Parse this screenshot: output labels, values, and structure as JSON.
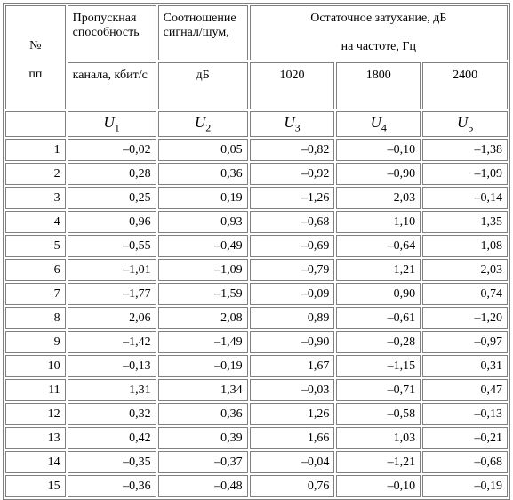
{
  "header": {
    "number_top": "№",
    "number_bottom": "пп",
    "columns": [
      {
        "top": "Пропускная способность",
        "unit": "канала, кбит/с",
        "symbol": "U",
        "index": "1"
      },
      {
        "top": "Соотношение сигнал/шум,",
        "unit": "дБ",
        "symbol": "U",
        "index": "2"
      },
      {
        "top": null,
        "unit": "1020",
        "symbol": "U",
        "index": "3"
      },
      {
        "top": null,
        "unit": "1800",
        "symbol": "U",
        "index": "4"
      },
      {
        "top": null,
        "unit": "2400",
        "symbol": "U",
        "index": "5"
      }
    ],
    "group_title": "Остаточное затухание, дБ",
    "group_subtitle": "на частоте, Гц"
  },
  "table": {
    "rows": [
      [
        "1",
        "–0,02",
        "0,05",
        "–0,82",
        "–0,10",
        "–1,38"
      ],
      [
        "2",
        "0,28",
        "0,36",
        "–0,92",
        "–0,90",
        "–1,09"
      ],
      [
        "3",
        "0,25",
        "0,19",
        "–1,26",
        "2,03",
        "–0,14"
      ],
      [
        "4",
        "0,96",
        "0,93",
        "–0,68",
        "1,10",
        "1,35"
      ],
      [
        "5",
        "–0,55",
        "–0,49",
        "–0,69",
        "–0,64",
        "1,08"
      ],
      [
        "6",
        "–1,01",
        "–1,09",
        "–0,79",
        "1,21",
        "2,03"
      ],
      [
        "7",
        "–1,77",
        "–1,59",
        "–0,09",
        "0,90",
        "0,74"
      ],
      [
        "8",
        "2,06",
        "2,08",
        "0,89",
        "–0,61",
        "–1,20"
      ],
      [
        "9",
        "–1,42",
        "–1,49",
        "–0,90",
        "–0,28",
        "–0,97"
      ],
      [
        "10",
        "–0,13",
        "–0,19",
        "1,67",
        "–1,15",
        "0,31"
      ],
      [
        "11",
        "1,31",
        "1,34",
        "–0,03",
        "–0,71",
        "0,47"
      ],
      [
        "12",
        "0,32",
        "0,36",
        "1,26",
        "–0,58",
        "–0,13"
      ],
      [
        "13",
        "0,42",
        "0,39",
        "1,66",
        "1,03",
        "–0,21"
      ],
      [
        "14",
        "–0,35",
        "–0,37",
        "–0,04",
        "–1,21",
        "–0,68"
      ],
      [
        "15",
        "–0,36",
        "–0,48",
        "0,76",
        "–0,10",
        "–0,19"
      ]
    ]
  }
}
